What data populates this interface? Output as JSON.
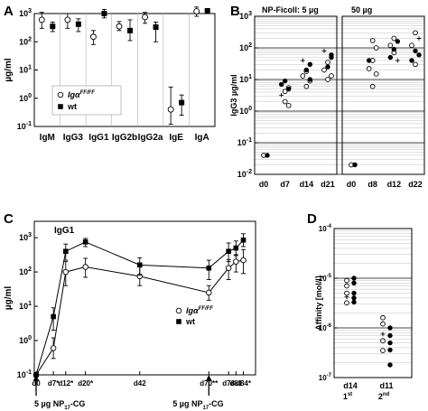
{
  "figure": {
    "panel_letters": [
      "A",
      "B",
      "C",
      "D"
    ],
    "genotypes": {
      "mutant": "Igα",
      "mutant_sup": "FF/FF",
      "wt": "wt"
    },
    "colors": {
      "ink": "#000000",
      "grid": "#b0b0b0",
      "panel_border": "#000000",
      "background": "#ffffff"
    }
  },
  "chart_data": [
    {
      "panel": "A",
      "type": "scatter",
      "ylabel": "µg/ml",
      "yscale": "log",
      "ylim": [
        0.1,
        1000
      ],
      "yticks": [
        {
          "m": "10",
          "e": "-1"
        },
        {
          "m": "10",
          "e": "0"
        },
        {
          "m": "10",
          "e": "1"
        },
        {
          "m": "10",
          "e": "2"
        },
        {
          "m": "10",
          "e": "3"
        }
      ],
      "categories": [
        "IgM",
        "IgG3",
        "IgG1",
        "IgG2b",
        "IgG2a",
        "IgE",
        "IgA"
      ],
      "legend": {
        "entries": [
          "mutant",
          "wt"
        ],
        "position": "inside-left"
      },
      "series": [
        {
          "name": "Igα FF/FF",
          "marker": "open-circle",
          "values": [
            600,
            600,
            150,
            350,
            750,
            0.4,
            1200
          ],
          "err_low": [
            300,
            300,
            80,
            250,
            450,
            0.12,
            800
          ],
          "err_high": [
            1100,
            1000,
            250,
            520,
            1100,
            2.5,
            1700
          ]
        },
        {
          "name": "wt",
          "marker": "filled-square",
          "values": [
            350,
            420,
            1000,
            250,
            330,
            0.7,
            1250
          ],
          "err_low": [
            230,
            230,
            700,
            110,
            100,
            0.25,
            1000
          ],
          "err_high": [
            500,
            650,
            1400,
            600,
            500,
            1.3,
            1500
          ]
        }
      ]
    },
    {
      "panel": "B",
      "type": "scatter",
      "ylabel": "IgG3 µg/ml",
      "yscale": "log",
      "ylim": [
        0.01,
        1000
      ],
      "yticks": [
        {
          "m": "10",
          "e": "-2"
        },
        {
          "m": "10",
          "e": "-1"
        },
        {
          "m": "10",
          "e": "0"
        },
        {
          "m": "10",
          "e": "1"
        },
        {
          "m": "10",
          "e": "2"
        },
        {
          "m": "10",
          "e": "3"
        }
      ],
      "grid": true,
      "subpanels": [
        {
          "title": "NP-Ficoll:  5 µg",
          "categories": [
            "d0",
            "d7",
            "d14",
            "d21"
          ],
          "points": [
            {
              "x": "d0",
              "y": 0.04,
              "m": "o"
            },
            {
              "x": "d0",
              "y": 0.04,
              "m": "f"
            },
            {
              "x": "d7",
              "y": 2.0,
              "m": "o"
            },
            {
              "x": "d7",
              "y": 1.5,
              "m": "o"
            },
            {
              "x": "d7",
              "y": 3.2,
              "m": "p"
            },
            {
              "x": "d7",
              "y": 4.2,
              "m": "o"
            },
            {
              "x": "d7",
              "y": 5.5,
              "m": "o"
            },
            {
              "x": "d7",
              "y": 7.0,
              "m": "f"
            },
            {
              "x": "d7",
              "y": 9.0,
              "m": "f"
            },
            {
              "x": "d7",
              "y": 5.0,
              "m": "f"
            },
            {
              "x": "d14",
              "y": 6.0,
              "m": "o"
            },
            {
              "x": "d14",
              "y": 9.0,
              "m": "o"
            },
            {
              "x": "d14",
              "y": 13.0,
              "m": "o"
            },
            {
              "x": "d14",
              "y": 18.0,
              "m": "o"
            },
            {
              "x": "d14",
              "y": 30.0,
              "m": "f"
            },
            {
              "x": "d14",
              "y": 40.0,
              "m": "p"
            },
            {
              "x": "d14",
              "y": 20.0,
              "m": "f"
            },
            {
              "x": "d14",
              "y": 10.0,
              "m": "f"
            },
            {
              "x": "d21",
              "y": 10.0,
              "m": "o"
            },
            {
              "x": "d21",
              "y": 13.0,
              "m": "o"
            },
            {
              "x": "d21",
              "y": 20.0,
              "m": "o"
            },
            {
              "x": "d21",
              "y": 35.0,
              "m": "o"
            },
            {
              "x": "d21",
              "y": 50.0,
              "m": "f"
            },
            {
              "x": "d21",
              "y": 80.0,
              "m": "p"
            },
            {
              "x": "d21",
              "y": 25.0,
              "m": "f"
            },
            {
              "x": "d21",
              "y": 60.0,
              "m": "f"
            }
          ]
        },
        {
          "title": "50 µg",
          "categories": [
            "d0",
            "d8",
            "d12",
            "d22"
          ],
          "points": [
            {
              "x": "d0",
              "y": 0.02,
              "m": "o"
            },
            {
              "x": "d0",
              "y": 0.02,
              "m": "f"
            },
            {
              "x": "d8",
              "y": 6.0,
              "m": "o"
            },
            {
              "x": "d8",
              "y": 15.0,
              "m": "o"
            },
            {
              "x": "d8",
              "y": 22.0,
              "m": "o"
            },
            {
              "x": "d8",
              "y": 40.0,
              "m": "o"
            },
            {
              "x": "d8",
              "y": 100.0,
              "m": "o"
            },
            {
              "x": "d8",
              "y": 40.0,
              "m": "f"
            },
            {
              "x": "d8",
              "y": 170.0,
              "m": "o"
            },
            {
              "x": "d12",
              "y": 200.0,
              "m": "o"
            },
            {
              "x": "d12",
              "y": 160.0,
              "m": "f"
            },
            {
              "x": "d12",
              "y": 120.0,
              "m": "o"
            },
            {
              "x": "d12",
              "y": 70.0,
              "m": "o"
            },
            {
              "x": "d12",
              "y": 40.0,
              "m": "p"
            },
            {
              "x": "d12",
              "y": 50.0,
              "m": "f"
            },
            {
              "x": "d12",
              "y": 90.0,
              "m": "f"
            },
            {
              "x": "d22",
              "y": 300.0,
              "m": "o"
            },
            {
              "x": "d22",
              "y": 200.0,
              "m": "p"
            },
            {
              "x": "d22",
              "y": 120.0,
              "m": "o"
            },
            {
              "x": "d22",
              "y": 80.0,
              "m": "f"
            },
            {
              "x": "d22",
              "y": 60.0,
              "m": "f"
            },
            {
              "x": "d22",
              "y": 40.0,
              "m": "f"
            },
            {
              "x": "d22",
              "y": 30.0,
              "m": "o"
            }
          ]
        }
      ],
      "marker_legend": {
        "o": "open-circle",
        "f": "filled-circle",
        "p": "plus"
      }
    },
    {
      "panel": "C",
      "type": "line",
      "title": "IgG1",
      "ylabel": "µg/ml",
      "yscale": "log",
      "ylim": [
        0.1,
        3000
      ],
      "yticks": [
        {
          "m": "10",
          "e": "-1"
        },
        {
          "m": "10",
          "e": "0"
        },
        {
          "m": "10",
          "e": "1"
        },
        {
          "m": "10",
          "e": "2"
        },
        {
          "m": "10",
          "e": "3"
        }
      ],
      "x_labels": [
        "d0",
        "d7*",
        "d12*",
        "d20*",
        "d42",
        "d70**",
        "d78",
        "d81",
        "d84*"
      ],
      "x_days": [
        0,
        7,
        12,
        20,
        42,
        70,
        78,
        81,
        84
      ],
      "legend": {
        "entries": [
          "mutant",
          "wt"
        ],
        "position": "right"
      },
      "series": [
        {
          "name": "Igα FF/FF",
          "marker": "open-circle",
          "x": [
            0,
            7,
            12,
            20,
            42,
            70,
            78,
            81,
            84
          ],
          "y": [
            0.1,
            0.6,
            100,
            140,
            75,
            25,
            130,
            200,
            220
          ],
          "err_low": [
            0.1,
            0.3,
            40,
            70,
            40,
            15,
            60,
            100,
            90
          ],
          "err_high": [
            0.1,
            1.2,
            200,
            250,
            140,
            40,
            230,
            320,
            450
          ]
        },
        {
          "name": "wt",
          "marker": "filled-square",
          "x": [
            0,
            7,
            12,
            20,
            42,
            70,
            78,
            81,
            84
          ],
          "y": [
            0.1,
            5,
            400,
            750,
            160,
            130,
            400,
            500,
            850
          ],
          "err_low": [
            0.1,
            2,
            220,
            550,
            80,
            60,
            200,
            300,
            550
          ],
          "err_high": [
            0.1,
            9,
            650,
            950,
            260,
            220,
            700,
            800,
            1300
          ]
        }
      ],
      "annotations": [
        {
          "text": "5 µg NP",
          "sub": "17",
          "suffix": "-CG",
          "at_day": 0
        },
        {
          "text": "5 µg NP",
          "sub": "17",
          "suffix": "-CG",
          "at_day": 70
        }
      ]
    },
    {
      "panel": "D",
      "type": "scatter",
      "ylabel": "Affinity [mol/l]",
      "yscale": "log",
      "ylim": [
        1e-07,
        0.0001
      ],
      "yticks": [
        {
          "m": "10",
          "e": "-4"
        },
        {
          "m": "10",
          "e": "-5"
        },
        {
          "m": "10",
          "e": "-6"
        },
        {
          "m": "10",
          "e": "-7"
        }
      ],
      "grid": true,
      "categories": [
        {
          "label": "d14",
          "sub_num": "1",
          "sub_sup": "st"
        },
        {
          "label": "d11",
          "sub_num": "2",
          "sub_sup": "nd"
        }
      ],
      "points": [
        {
          "x": "d14",
          "y": 9e-06,
          "m": "o",
          "dx": -4
        },
        {
          "x": "d14",
          "y": 7e-06,
          "m": "o",
          "dx": -4
        },
        {
          "x": "d14",
          "y": 5e-06,
          "m": "o",
          "dx": -4
        },
        {
          "x": "d14",
          "y": 4.2e-06,
          "m": "p",
          "dx": -4
        },
        {
          "x": "d14",
          "y": 3.2e-06,
          "m": "o",
          "dx": -4
        },
        {
          "x": "d14",
          "y": 1e-05,
          "m": "f",
          "dx": 4
        },
        {
          "x": "d14",
          "y": 8e-06,
          "m": "f",
          "dx": 4
        },
        {
          "x": "d14",
          "y": 5e-06,
          "m": "f",
          "dx": 4
        },
        {
          "x": "d14",
          "y": 4e-06,
          "m": "f",
          "dx": 4
        },
        {
          "x": "d14",
          "y": 3.3e-06,
          "m": "f",
          "dx": 4
        },
        {
          "x": "d11",
          "y": 1.6e-06,
          "m": "o",
          "dx": -4
        },
        {
          "x": "d11",
          "y": 1.2e-06,
          "m": "o",
          "dx": -4
        },
        {
          "x": "d11",
          "y": 7.5e-07,
          "m": "p",
          "dx": -4
        },
        {
          "x": "d11",
          "y": 5.5e-07,
          "m": "o",
          "dx": -4
        },
        {
          "x": "d11",
          "y": 3.5e-07,
          "m": "o",
          "dx": -4
        },
        {
          "x": "d11",
          "y": 1e-06,
          "m": "f",
          "dx": 4
        },
        {
          "x": "d11",
          "y": 7e-07,
          "m": "f",
          "dx": 4
        },
        {
          "x": "d11",
          "y": 5e-07,
          "m": "f",
          "dx": 4
        },
        {
          "x": "d11",
          "y": 3.6e-07,
          "m": "f",
          "dx": 4
        },
        {
          "x": "d11",
          "y": 1.8e-07,
          "m": "f",
          "dx": 4
        }
      ]
    }
  ]
}
